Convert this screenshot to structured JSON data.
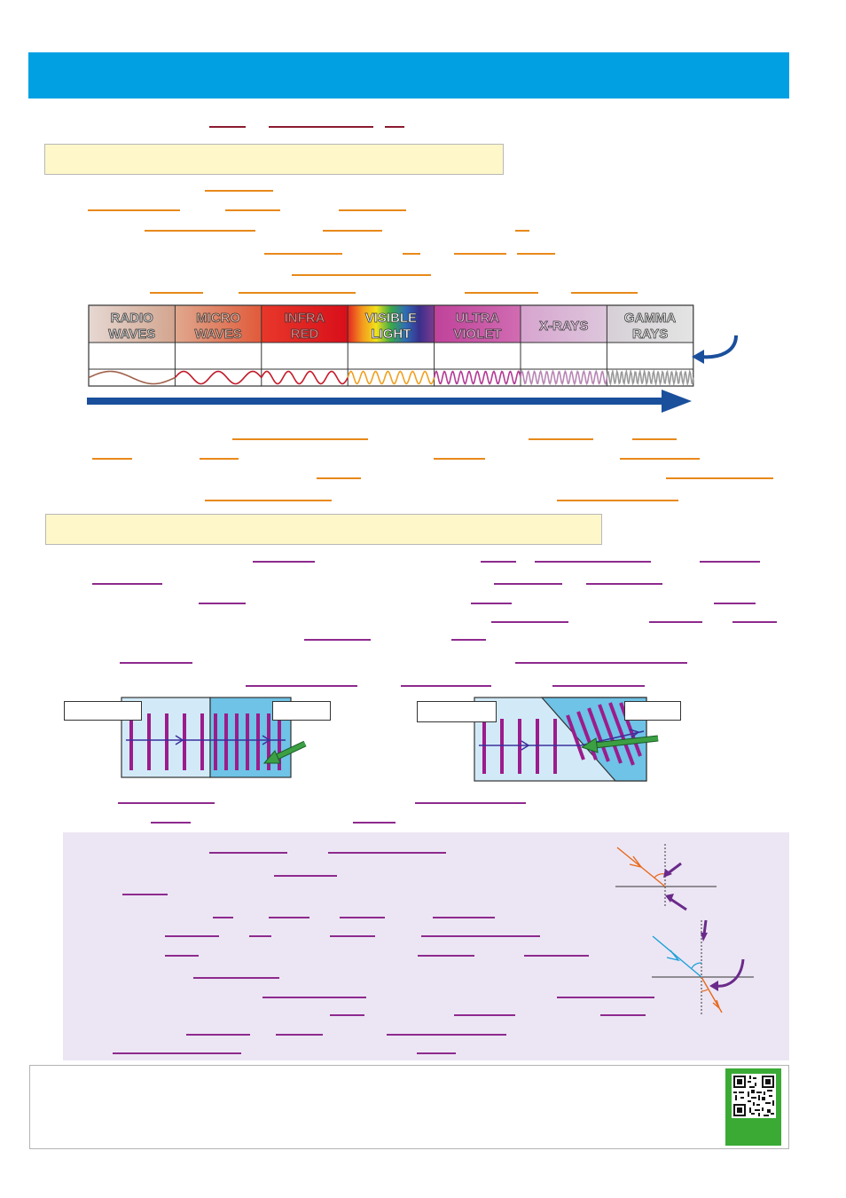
{
  "spectrum": {
    "bands": [
      {
        "label_line1": "RADIO",
        "label_line2": "WAVES",
        "color": "#d9c3b9"
      },
      {
        "label_line1": "MICRO",
        "label_line2": "WAVES",
        "color": "#e07a5a"
      },
      {
        "label_line1": "INFRA",
        "label_line2": "RED",
        "color": "#e21b1b"
      },
      {
        "label_line1": "VISIBLE",
        "label_line2": "LIGHT",
        "color": "rainbow"
      },
      {
        "label_line1": "ULTRA",
        "label_line2": "VIOLET",
        "color": "#c74fa0"
      },
      {
        "label_line1": "X-RAYS",
        "label_line2": "",
        "color": "#d8b6d4"
      },
      {
        "label_line1": "GAMMA",
        "label_line2": "RAYS",
        "color": "#dcdcdc"
      }
    ]
  },
  "colors": {
    "header": "#00a0e3",
    "section_fill": "#fef7c9",
    "blank_dark": "#8b1a2e",
    "blank_orange": "#e8891a",
    "blank_purple": "#8e2a8e",
    "arrow_blue": "#1a4f9c",
    "panel_lilac": "#ece6f4",
    "qr_green": "#3aaa35"
  },
  "icons": {
    "qr": "qr-code-icon",
    "curved_arrow": "curved-arrow-icon"
  }
}
